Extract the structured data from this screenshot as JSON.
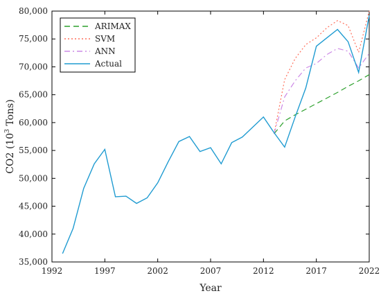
{
  "chart_data": {
    "type": "line",
    "xlabel": "Year",
    "ylabel_main": "CO2 (10",
    "ylabel_sup": "3",
    "ylabel_tail": " Tons)",
    "xlim": [
      1992,
      2022
    ],
    "ylim": [
      35000,
      80000
    ],
    "x_ticks": [
      1992,
      1997,
      2002,
      2007,
      2012,
      2017,
      2022
    ],
    "y_ticks": [
      35000,
      40000,
      45000,
      50000,
      55000,
      60000,
      65000,
      70000,
      75000,
      80000
    ],
    "y_tick_labels": [
      "35,000",
      "40,000",
      "45,000",
      "50,000",
      "55,000",
      "60,000",
      "65,000",
      "70,000",
      "75,000",
      "80,000"
    ],
    "legend_position": "top-left",
    "series": [
      {
        "name": "ARIMAX",
        "color": "#2ca02c",
        "style": "dashed",
        "x": [
          2013,
          2014,
          2015,
          2016,
          2017,
          2018,
          2019,
          2020,
          2021,
          2022
        ],
        "y": [
          58000,
          60300,
          61400,
          62400,
          63400,
          64400,
          65400,
          66500,
          67500,
          68600
        ]
      },
      {
        "name": "SVM",
        "color": "#ff6e5a",
        "style": "dotted",
        "x": [
          2013,
          2014,
          2015,
          2016,
          2017,
          2018,
          2019,
          2020,
          2021,
          2022
        ],
        "y": [
          58000,
          67700,
          71500,
          74000,
          75200,
          77000,
          78300,
          77400,
          72600,
          80000
        ]
      },
      {
        "name": "ANN",
        "color": "#cc88e6",
        "style": "dashdot",
        "x": [
          2013,
          2014,
          2015,
          2016,
          2017,
          2018,
          2019,
          2020,
          2021,
          2022
        ],
        "y": [
          58000,
          64600,
          67500,
          69800,
          70600,
          72200,
          73300,
          72800,
          69800,
          72400
        ]
      },
      {
        "name": "Actual",
        "color": "#1f9bd1",
        "style": "solid",
        "x": [
          1993,
          1994,
          1995,
          1996,
          1997,
          1998,
          1999,
          2000,
          2001,
          2002,
          2003,
          2004,
          2005,
          2006,
          2007,
          2008,
          2009,
          2010,
          2011,
          2012,
          2013,
          2014,
          2015,
          2016,
          2017,
          2018,
          2019,
          2020,
          2021,
          2022
        ],
        "y": [
          36500,
          41000,
          48200,
          52600,
          55200,
          46700,
          46800,
          45500,
          46500,
          49200,
          53000,
          56600,
          57500,
          54800,
          55500,
          52600,
          56400,
          57400,
          59200,
          61000,
          58200,
          55600,
          61000,
          66200,
          73700,
          75200,
          76700,
          74500,
          69000,
          79200
        ]
      }
    ]
  }
}
